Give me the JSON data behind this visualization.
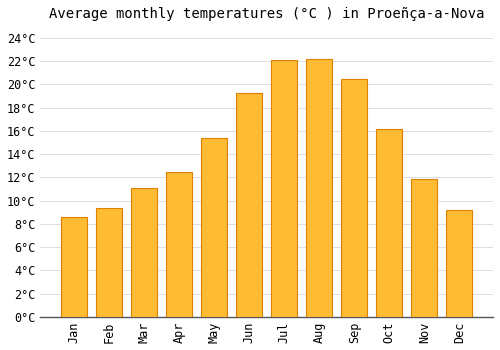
{
  "title": "Average monthly temperatures (°C ) in Proeñça-a-Nova",
  "months": [
    "Jan",
    "Feb",
    "Mar",
    "Apr",
    "May",
    "Jun",
    "Jul",
    "Aug",
    "Sep",
    "Oct",
    "Nov",
    "Dec"
  ],
  "values": [
    8.6,
    9.4,
    11.1,
    12.5,
    15.4,
    19.3,
    22.1,
    22.2,
    20.5,
    16.2,
    11.9,
    9.2
  ],
  "bar_color": "#FFBB33",
  "bar_edge_color": "#E08000",
  "background_color": "#FFFFFF",
  "plot_bg_color": "#FFFFFF",
  "grid_color": "#DDDDDD",
  "ylim": [
    0,
    25
  ],
  "ytick_step": 2,
  "font_family": "monospace",
  "title_fontsize": 10,
  "tick_fontsize": 8.5,
  "bar_width": 0.75,
  "linewidth": 0.8
}
